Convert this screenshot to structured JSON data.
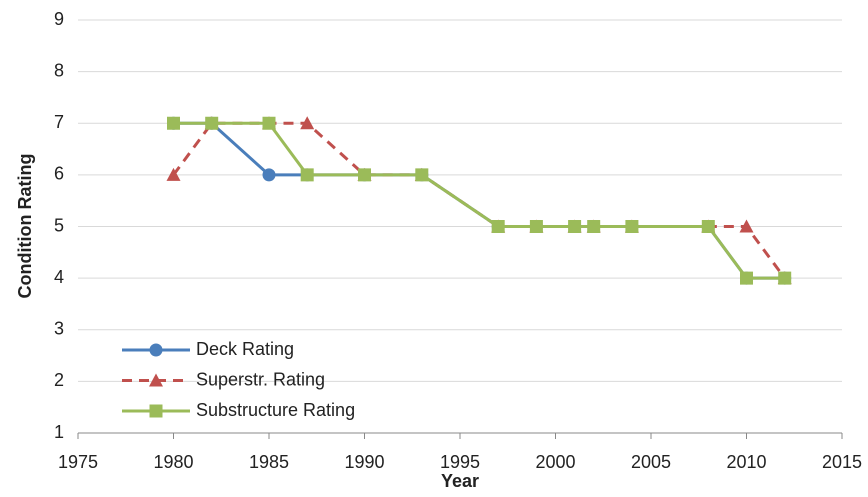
{
  "chart_data": {
    "type": "line",
    "xlabel": "Year",
    "ylabel": "Condition Rating",
    "x": [
      1980,
      1982,
      1985,
      1987,
      1990,
      1993,
      1997,
      1999,
      2001,
      2002,
      2004,
      2008,
      2010,
      2012
    ],
    "series": [
      {
        "name": "Deck Rating",
        "color": "#4a7ebb",
        "marker": "circle",
        "dash": false,
        "values": [
          7,
          7,
          6,
          6,
          6,
          6,
          5,
          5,
          5,
          5,
          5,
          5,
          4,
          4
        ]
      },
      {
        "name": "Superstr. Rating",
        "color": "#c0504d",
        "marker": "triangle",
        "dash": true,
        "values": [
          6,
          7,
          7,
          7,
          6,
          6,
          5,
          5,
          5,
          5,
          5,
          5,
          5,
          4
        ]
      },
      {
        "name": "Substructure Rating",
        "color": "#9bbb59",
        "marker": "square",
        "dash": false,
        "values": [
          7,
          7,
          7,
          6,
          6,
          6,
          5,
          5,
          5,
          5,
          5,
          5,
          4,
          4
        ]
      }
    ],
    "xlim": [
      1975,
      2015
    ],
    "xticks": [
      1975,
      1980,
      1985,
      1990,
      1995,
      2000,
      2005,
      2010,
      2015
    ],
    "ylim": [
      1,
      9
    ],
    "yticks": [
      1,
      2,
      3,
      4,
      5,
      6,
      7,
      8,
      9
    ],
    "grid": true,
    "legend": "lower left"
  }
}
